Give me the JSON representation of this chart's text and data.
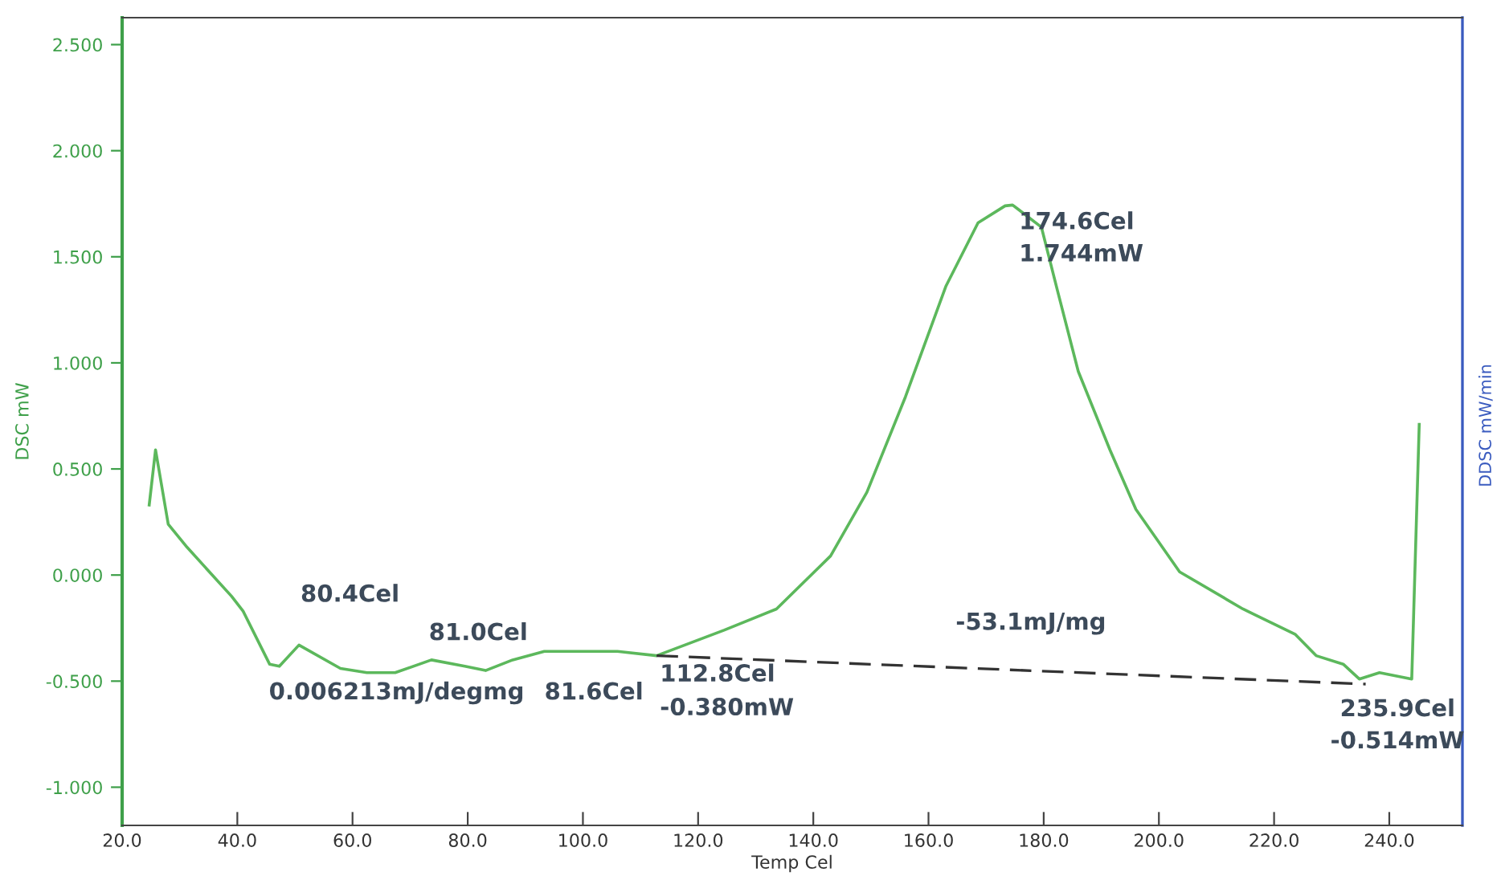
{
  "chart_data": {
    "type": "line",
    "xlabel": "Temp Cel",
    "ylabel": "DSC mW",
    "y2label": "DDSC mW/min",
    "xlim": [
      20,
      252.7
    ],
    "ylim": [
      -1.18,
      2.627
    ],
    "xticks": [
      {
        "value": 20,
        "label": "20.0"
      },
      {
        "value": 40,
        "label": "40.0"
      },
      {
        "value": 60,
        "label": "60.0"
      },
      {
        "value": 80,
        "label": "80.0"
      },
      {
        "value": 100,
        "label": "100.0"
      },
      {
        "value": 120,
        "label": "120.0"
      },
      {
        "value": 140,
        "label": "140.0"
      },
      {
        "value": 160,
        "label": "160.0"
      },
      {
        "value": 180,
        "label": "180.0"
      },
      {
        "value": 200,
        "label": "200.0"
      },
      {
        "value": 220,
        "label": "220.0"
      },
      {
        "value": 240,
        "label": "240.0"
      }
    ],
    "yticks": [
      {
        "value": -1,
        "label": "-1.000"
      },
      {
        "value": -0.5,
        "label": "-0.500"
      },
      {
        "value": 0,
        "label": "0.000"
      },
      {
        "value": 0.5,
        "label": "0.500"
      },
      {
        "value": 1,
        "label": "1.000"
      },
      {
        "value": 1.5,
        "label": "1.500"
      },
      {
        "value": 2,
        "label": "2.000"
      },
      {
        "value": 2.5,
        "label": "2.500"
      }
    ],
    "grid": false,
    "legend": false,
    "marker": "none",
    "series": [
      {
        "color": "#5cb85c",
        "line_style": "solid",
        "x": [
          24.7,
          25.8,
          28,
          31.3,
          39,
          41,
          45.6,
          47.3,
          50.7,
          57.9,
          62.5,
          67.4,
          73.7,
          79.5,
          83.1,
          87.8,
          93.3,
          106,
          112.8,
          124.5,
          133.6,
          143,
          149.3,
          156,
          163,
          168.6,
          173.3,
          174.6,
          179.6,
          182.4,
          186,
          191.5,
          196,
          203.6,
          214.6,
          223.7,
          227.3,
          232,
          234.8,
          238.3,
          243.9,
          245.2
        ],
        "values": [
          0.33,
          0.59,
          0.24,
          0.13,
          -0.1,
          -0.17,
          -0.42,
          -0.43,
          -0.33,
          -0.44,
          -0.46,
          -0.46,
          -0.4,
          -0.43,
          -0.45,
          -0.4,
          -0.36,
          -0.36,
          -0.38,
          -0.26,
          -0.16,
          0.09,
          0.39,
          0.84,
          1.36,
          1.66,
          1.74,
          1.744,
          1.64,
          1.34,
          0.96,
          0.59,
          0.31,
          0.015,
          -0.16,
          -0.28,
          -0.38,
          -0.42,
          -0.49,
          -0.46,
          -0.49,
          0.71
        ]
      },
      {
        "color": "#333333",
        "line_style": "dashed",
        "x": [
          112.8,
          235.9
        ],
        "values": [
          -0.38,
          -0.514
        ]
      }
    ],
    "annotations": [
      "80.4Cel",
      {
        "text": "81.0Cel",
        "x": 81.0,
        "y": -0.45
      },
      {
        "text": "0.006213mJ/degmg",
        "x": 81.6,
        "y": -0.45
      },
      {
        "text": "81.6Cel",
        "x": 81.6,
        "y": -0.45
      },
      {
        "text": "112.8Cel",
        "x": 112.8,
        "y": -0.38
      },
      {
        "text": "-0.380mW",
        "x": 112.8,
        "y": -0.38
      },
      {
        "text": "174.6Cel",
        "x": 174.6,
        "y": 1.744
      },
      {
        "text": "1.744mW",
        "x": 174.6,
        "y": 1.744
      },
      {
        "text": "235.9Cel",
        "x": 235.9,
        "y": -0.514
      },
      {
        "text": "-0.514mW",
        "x": 235.9,
        "y": -0.514
      },
      "-53.1mJ/mg"
    ]
  }
}
